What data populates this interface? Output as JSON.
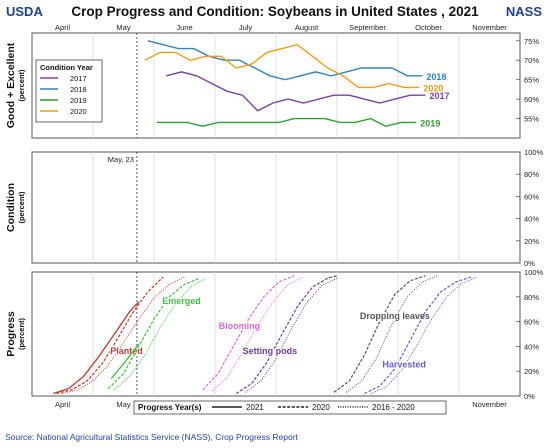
{
  "header": {
    "left": "USDA",
    "title": "Crop Progress and Condition: Soybeans in United States , 2021",
    "right": "NASS"
  },
  "source": "Source: National Agricultural Statistics Service (NASS), Crop Progress Report",
  "colors": {
    "c2017": "#7b3fa6",
    "c2018": "#2e86c1",
    "c2019": "#2ca02c",
    "c2020": "#f39c12",
    "planted": "#c0392b",
    "emerged": "#3fbf3f",
    "blooming": "#e066e0",
    "setting_pods": "#6a3d9a",
    "dropping_leaves": "#555555",
    "harvested": "#6a5acd"
  },
  "chart_data": [
    {
      "type": "line",
      "ylabel": "Good + Excellent (percent)",
      "x_axis": "month",
      "months": [
        "April",
        "May",
        "June",
        "July",
        "August",
        "September",
        "October",
        "November"
      ],
      "ylim": [
        50,
        77
      ],
      "yticks": [
        "75%",
        "70%",
        "65%",
        "60%",
        "55%"
      ],
      "ytick_values": [
        75,
        70,
        65,
        60,
        55
      ],
      "legend": {
        "title": "Condition Year",
        "position": "top-left"
      },
      "series": [
        {
          "name": "2017",
          "color": "#7b3fa6",
          "end_label": "2017",
          "x": [
            2.2,
            2.45,
            2.7,
            2.95,
            3.2,
            3.45,
            3.7,
            3.95,
            4.2,
            4.45,
            4.7,
            4.95,
            5.2,
            5.45,
            5.7,
            5.95,
            6.2,
            6.45
          ],
          "y": [
            66,
            67,
            66,
            64,
            62,
            61,
            57,
            59,
            60,
            59,
            60,
            61,
            61,
            60,
            59,
            60,
            61,
            61
          ]
        },
        {
          "name": "2018",
          "color": "#2e86c1",
          "end_label": "2018",
          "x": [
            1.9,
            2.15,
            2.4,
            2.65,
            2.9,
            3.15,
            3.4,
            3.65,
            3.9,
            4.15,
            4.4,
            4.65,
            4.9,
            5.15,
            5.4,
            5.65,
            5.9,
            6.15,
            6.4
          ],
          "y": [
            75,
            74,
            73,
            73,
            71,
            70,
            70,
            68,
            66,
            65,
            66,
            67,
            66,
            67,
            68,
            68,
            68,
            66,
            66
          ]
        },
        {
          "name": "2019",
          "color": "#2ca02c",
          "end_label": "2019",
          "x": [
            2.05,
            2.3,
            2.55,
            2.8,
            3.05,
            3.3,
            3.55,
            3.8,
            4.05,
            4.3,
            4.55,
            4.8,
            5.05,
            5.3,
            5.55,
            5.8,
            6.05,
            6.3
          ],
          "y": [
            54,
            54,
            54,
            53,
            54,
            54,
            54,
            54,
            54,
            55,
            55,
            55,
            54,
            54,
            55,
            53,
            54,
            54
          ]
        },
        {
          "name": "2020",
          "color": "#f39c12",
          "end_label": "2020",
          "x": [
            1.85,
            2.1,
            2.35,
            2.6,
            2.85,
            3.1,
            3.35,
            3.6,
            3.85,
            4.1,
            4.35,
            4.6,
            4.85,
            5.1,
            5.35,
            5.6,
            5.85,
            6.1,
            6.35
          ],
          "y": [
            70,
            72,
            72,
            70,
            71,
            71,
            68,
            69,
            72,
            73,
            74,
            71,
            68,
            66,
            63,
            63,
            64,
            63,
            63
          ]
        }
      ]
    },
    {
      "type": "line",
      "ylabel": "Condition (percent)",
      "x_axis": "month",
      "ylim": [
        0,
        100
      ],
      "yticks": [
        "100%",
        "80%",
        "60%",
        "40%",
        "20%",
        "0%"
      ],
      "ytick_values": [
        100,
        80,
        60,
        40,
        20,
        0
      ],
      "annotation": "May, 23",
      "series": []
    },
    {
      "type": "line",
      "ylabel": "Progress (percent)",
      "x_axis": "month",
      "months": [
        "April",
        "May",
        "June",
        "July",
        "August",
        "September",
        "October",
        "November"
      ],
      "ylim": [
        0,
        100
      ],
      "yticks": [
        "100%",
        "80%",
        "60%",
        "40%",
        "20%",
        "0%"
      ],
      "ytick_values": [
        100,
        80,
        60,
        40,
        20,
        0
      ],
      "legend": {
        "title": "Progress Year(s)",
        "position": "bottom",
        "entries": [
          {
            "label": "2021",
            "style": "solid"
          },
          {
            "label": "2020",
            "style": "dashed"
          },
          {
            "label": "2016 - 2020",
            "style": "dotted"
          }
        ]
      },
      "stages": [
        {
          "name": "Planted",
          "color": "#c0392b",
          "label_at": [
            1.55,
            34
          ],
          "y2021": {
            "x": [
              0.35,
              0.6,
              0.85,
              1.1,
              1.35,
              1.6,
              1.75
            ],
            "y": [
              2,
              6,
              16,
              32,
              50,
              68,
              76
            ]
          },
          "y2020": {
            "x": [
              0.4,
              0.65,
              0.9,
              1.15,
              1.4,
              1.65,
              1.9,
              2.15
            ],
            "y": [
              2,
              5,
              12,
              26,
              46,
              67,
              84,
              96
            ]
          },
          "avg": {
            "x": [
              0.5,
              0.75,
              1.0,
              1.25,
              1.5,
              1.75,
              2.0,
              2.25,
              2.5
            ],
            "y": [
              2,
              5,
              12,
              25,
              43,
              62,
              79,
              90,
              96
            ]
          }
        },
        {
          "name": "Emerged",
          "color": "#3fbf3f",
          "label_at": [
            2.45,
            74
          ],
          "y2021": {
            "x": [
              1.3,
              1.5,
              1.75
            ],
            "y": [
              14,
              26,
              42
            ]
          },
          "y2020": {
            "x": [
              1.25,
              1.5,
              1.75,
              2.0,
              2.25,
              2.5,
              2.75
            ],
            "y": [
              6,
              18,
              40,
              62,
              80,
              90,
              95
            ]
          },
          "avg": {
            "x": [
              1.35,
              1.6,
              1.85,
              2.1,
              2.35,
              2.6,
              2.85
            ],
            "y": [
              5,
              16,
              33,
              55,
              74,
              88,
              95
            ]
          }
        },
        {
          "name": "Blooming",
          "color": "#e066e0",
          "label_at": [
            3.4,
            54
          ],
          "y2021": {
            "x": [],
            "y": []
          },
          "y2020": {
            "x": [
              2.8,
              3.05,
              3.3,
              3.55,
              3.8,
              4.05,
              4.3
            ],
            "y": [
              5,
              18,
              40,
              62,
              80,
              92,
              97
            ]
          },
          "avg": {
            "x": [
              2.95,
              3.2,
              3.45,
              3.7,
              3.95,
              4.2,
              4.45
            ],
            "y": [
              4,
              15,
              35,
              57,
              76,
              90,
              96
            ]
          }
        },
        {
          "name": "Setting pods",
          "color": "#6a3d9a",
          "label_at": [
            3.9,
            34
          ],
          "y2021": {
            "x": [],
            "y": []
          },
          "y2020": {
            "x": [
              3.35,
              3.6,
              3.85,
              4.1,
              4.35,
              4.6,
              4.85,
              5.0
            ],
            "y": [
              2,
              10,
              27,
              50,
              72,
              88,
              95,
              97
            ]
          },
          "avg": {
            "x": [
              3.5,
              3.75,
              4.0,
              4.25,
              4.5,
              4.75,
              5.0
            ],
            "y": [
              3,
              12,
              30,
              54,
              75,
              89,
              95
            ]
          }
        },
        {
          "name": "Dropping leaves",
          "color": "#555555",
          "label_at": [
            5.95,
            62
          ],
          "y2021": {
            "x": [],
            "y": []
          },
          "y2020": {
            "x": [
              4.95,
              5.2,
              5.45,
              5.7,
              5.95,
              6.2,
              6.45
            ],
            "y": [
              3,
              12,
              33,
              60,
              82,
              93,
              97
            ]
          },
          "avg": {
            "x": [
              5.15,
              5.4,
              5.65,
              5.9,
              6.15,
              6.4,
              6.65
            ],
            "y": [
              3,
              12,
              31,
              58,
              80,
              92,
              97
            ]
          }
        },
        {
          "name": "Harvested",
          "color": "#6a5acd",
          "label_at": [
            6.1,
            23
          ],
          "y2021": {
            "x": [],
            "y": []
          },
          "y2020": {
            "x": [
              5.45,
              5.7,
              5.95,
              6.2,
              6.45,
              6.7,
              6.95,
              7.2
            ],
            "y": [
              2,
              8,
              22,
              45,
              68,
              84,
              92,
              96
            ]
          },
          "avg": {
            "x": [
              5.55,
              5.8,
              6.05,
              6.3,
              6.55,
              6.8,
              7.05,
              7.3
            ],
            "y": [
              2,
              7,
              20,
              40,
              62,
              80,
              91,
              96
            ]
          }
        }
      ]
    }
  ]
}
